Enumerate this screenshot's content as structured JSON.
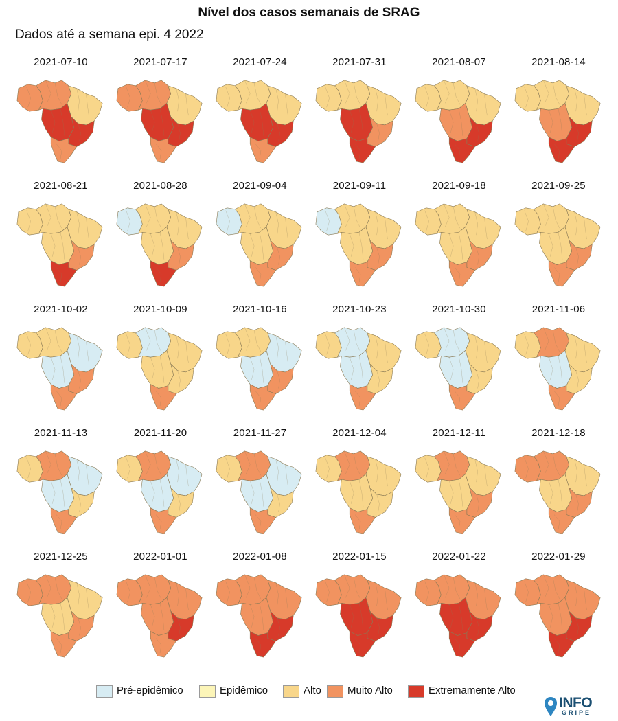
{
  "title": "Nível dos casos semanais de SRAG",
  "subtitle": "Dados até a semana epi. 4 2022",
  "colors": {
    "pre": "#d7ecf3",
    "epi": "#fcf5b8",
    "alto": "#f8d68a",
    "muito": "#f19360",
    "extremo": "#d73a2a",
    "border": "#8a7a55"
  },
  "legend": [
    {
      "key": "pre",
      "label": "Pré-epidêmico"
    },
    {
      "key": "epi",
      "label": "Epidêmico"
    },
    {
      "key": "alto",
      "label": "Alto"
    },
    {
      "key": "muito",
      "label": "Muito Alto"
    },
    {
      "key": "extremo",
      "label": "Extremamente Alto"
    }
  ],
  "weeks": [
    {
      "date": "2021-07-10",
      "levels": {
        "N": "muito",
        "NE": "alto",
        "CO": "extremo",
        "SE": "extremo",
        "S": "muito",
        "W": "muito"
      }
    },
    {
      "date": "2021-07-17",
      "levels": {
        "N": "muito",
        "NE": "alto",
        "CO": "extremo",
        "SE": "extremo",
        "S": "muito",
        "W": "muito"
      }
    },
    {
      "date": "2021-07-24",
      "levels": {
        "N": "alto",
        "NE": "alto",
        "CO": "extremo",
        "SE": "extremo",
        "S": "muito",
        "W": "alto"
      }
    },
    {
      "date": "2021-07-31",
      "levels": {
        "N": "alto",
        "NE": "alto",
        "CO": "extremo",
        "SE": "muito",
        "S": "extremo",
        "W": "alto"
      }
    },
    {
      "date": "2021-08-07",
      "levels": {
        "N": "alto",
        "NE": "alto",
        "CO": "muito",
        "SE": "extremo",
        "S": "extremo",
        "W": "alto"
      }
    },
    {
      "date": "2021-08-14",
      "levels": {
        "N": "alto",
        "NE": "alto",
        "CO": "muito",
        "SE": "extremo",
        "S": "extremo",
        "W": "alto"
      }
    },
    {
      "date": "2021-08-21",
      "levels": {
        "N": "alto",
        "NE": "alto",
        "CO": "alto",
        "SE": "muito",
        "S": "extremo",
        "W": "alto"
      }
    },
    {
      "date": "2021-08-28",
      "levels": {
        "N": "alto",
        "NE": "alto",
        "CO": "alto",
        "SE": "muito",
        "S": "extremo",
        "W": "pre"
      }
    },
    {
      "date": "2021-09-04",
      "levels": {
        "N": "alto",
        "NE": "alto",
        "CO": "alto",
        "SE": "muito",
        "S": "muito",
        "W": "pre"
      }
    },
    {
      "date": "2021-09-11",
      "levels": {
        "N": "alto",
        "NE": "alto",
        "CO": "alto",
        "SE": "muito",
        "S": "muito",
        "W": "pre"
      }
    },
    {
      "date": "2021-09-18",
      "levels": {
        "N": "alto",
        "NE": "alto",
        "CO": "alto",
        "SE": "muito",
        "S": "muito",
        "W": "alto"
      }
    },
    {
      "date": "2021-09-25",
      "levels": {
        "N": "alto",
        "NE": "alto",
        "CO": "alto",
        "SE": "muito",
        "S": "muito",
        "W": "alto"
      }
    },
    {
      "date": "2021-10-02",
      "levels": {
        "N": "alto",
        "NE": "pre",
        "CO": "pre",
        "SE": "muito",
        "S": "muito",
        "W": "alto"
      }
    },
    {
      "date": "2021-10-09",
      "levels": {
        "N": "pre",
        "NE": "alto",
        "CO": "alto",
        "SE": "alto",
        "S": "muito",
        "W": "alto"
      }
    },
    {
      "date": "2021-10-16",
      "levels": {
        "N": "alto",
        "NE": "pre",
        "CO": "pre",
        "SE": "muito",
        "S": "muito",
        "W": "alto"
      }
    },
    {
      "date": "2021-10-23",
      "levels": {
        "N": "pre",
        "NE": "alto",
        "CO": "pre",
        "SE": "alto",
        "S": "muito",
        "W": "alto"
      }
    },
    {
      "date": "2021-10-30",
      "levels": {
        "N": "pre",
        "NE": "alto",
        "CO": "pre",
        "SE": "alto",
        "S": "muito",
        "W": "alto"
      }
    },
    {
      "date": "2021-11-06",
      "levels": {
        "N": "muito",
        "NE": "alto",
        "CO": "pre",
        "SE": "alto",
        "S": "muito",
        "W": "alto"
      }
    },
    {
      "date": "2021-11-13",
      "levels": {
        "N": "muito",
        "NE": "pre",
        "CO": "pre",
        "SE": "alto",
        "S": "muito",
        "W": "alto"
      }
    },
    {
      "date": "2021-11-20",
      "levels": {
        "N": "muito",
        "NE": "pre",
        "CO": "pre",
        "SE": "alto",
        "S": "muito",
        "W": "alto"
      }
    },
    {
      "date": "2021-11-27",
      "levels": {
        "N": "muito",
        "NE": "pre",
        "CO": "pre",
        "SE": "alto",
        "S": "muito",
        "W": "alto"
      }
    },
    {
      "date": "2021-12-04",
      "levels": {
        "N": "muito",
        "NE": "alto",
        "CO": "alto",
        "SE": "alto",
        "S": "muito",
        "W": "alto"
      }
    },
    {
      "date": "2021-12-11",
      "levels": {
        "N": "muito",
        "NE": "alto",
        "CO": "alto",
        "SE": "muito",
        "S": "muito",
        "W": "alto"
      }
    },
    {
      "date": "2021-12-18",
      "levels": {
        "N": "muito",
        "NE": "alto",
        "CO": "alto",
        "SE": "muito",
        "S": "muito",
        "W": "muito"
      }
    },
    {
      "date": "2021-12-25",
      "levels": {
        "N": "muito",
        "NE": "alto",
        "CO": "alto",
        "SE": "muito",
        "S": "muito",
        "W": "muito"
      }
    },
    {
      "date": "2022-01-01",
      "levels": {
        "N": "muito",
        "NE": "muito",
        "CO": "muito",
        "SE": "extremo",
        "S": "muito",
        "W": "muito"
      }
    },
    {
      "date": "2022-01-08",
      "levels": {
        "N": "muito",
        "NE": "muito",
        "CO": "muito",
        "SE": "extremo",
        "S": "extremo",
        "W": "muito"
      }
    },
    {
      "date": "2022-01-15",
      "levels": {
        "N": "muito",
        "NE": "muito",
        "CO": "extremo",
        "SE": "extremo",
        "S": "extremo",
        "W": "muito"
      }
    },
    {
      "date": "2022-01-22",
      "levels": {
        "N": "muito",
        "NE": "muito",
        "CO": "extremo",
        "SE": "extremo",
        "S": "extremo",
        "W": "muito"
      }
    },
    {
      "date": "2022-01-29",
      "levels": {
        "N": "muito",
        "NE": "muito",
        "CO": "muito",
        "SE": "extremo",
        "S": "extremo",
        "W": "muito"
      }
    }
  ],
  "logo": {
    "top": "INFO",
    "bottom": "GRIPE"
  }
}
